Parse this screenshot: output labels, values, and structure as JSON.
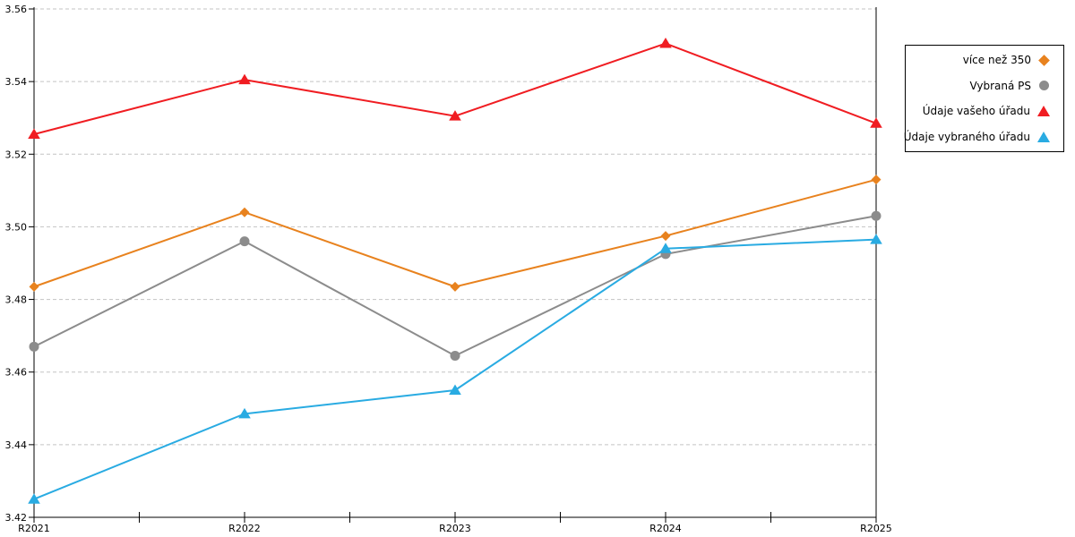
{
  "chart_data": {
    "type": "line",
    "title": "",
    "xlabel": "",
    "ylabel": "",
    "categories": [
      "R2021",
      "R2022",
      "R2023",
      "R2024",
      "R2025"
    ],
    "series": [
      {
        "name": "více než 350",
        "color": "#E8821E",
        "marker": "diamond",
        "values": [
          3.4835,
          3.504,
          3.4835,
          3.4975,
          3.513
        ]
      },
      {
        "name": "Vybraná PS",
        "color": "#8C8C8C",
        "marker": "circle",
        "values": [
          3.467,
          3.496,
          3.4645,
          3.4925,
          3.503
        ]
      },
      {
        "name": "Údaje vašeho úřadu",
        "color": "#F01D22",
        "marker": "triangle",
        "values": [
          3.5255,
          3.5405,
          3.5305,
          3.5505,
          3.5285
        ]
      },
      {
        "name": "Údaje vybraného úřadu",
        "color": "#29ABE2",
        "marker": "triangle",
        "values": [
          3.425,
          3.4485,
          3.455,
          3.494,
          3.4965
        ]
      }
    ],
    "ylim": [
      3.42,
      3.56
    ],
    "ytick_step": 0.02,
    "ytick_labels": [
      "3.42",
      "3.44",
      "3.46",
      "3.48",
      "3.50",
      "3.52",
      "3.54",
      "3.56"
    ],
    "grid": "horizontal-dashed",
    "grid_color": "#C3C3C3",
    "axis_color": "#000000",
    "legend_position": "right"
  }
}
